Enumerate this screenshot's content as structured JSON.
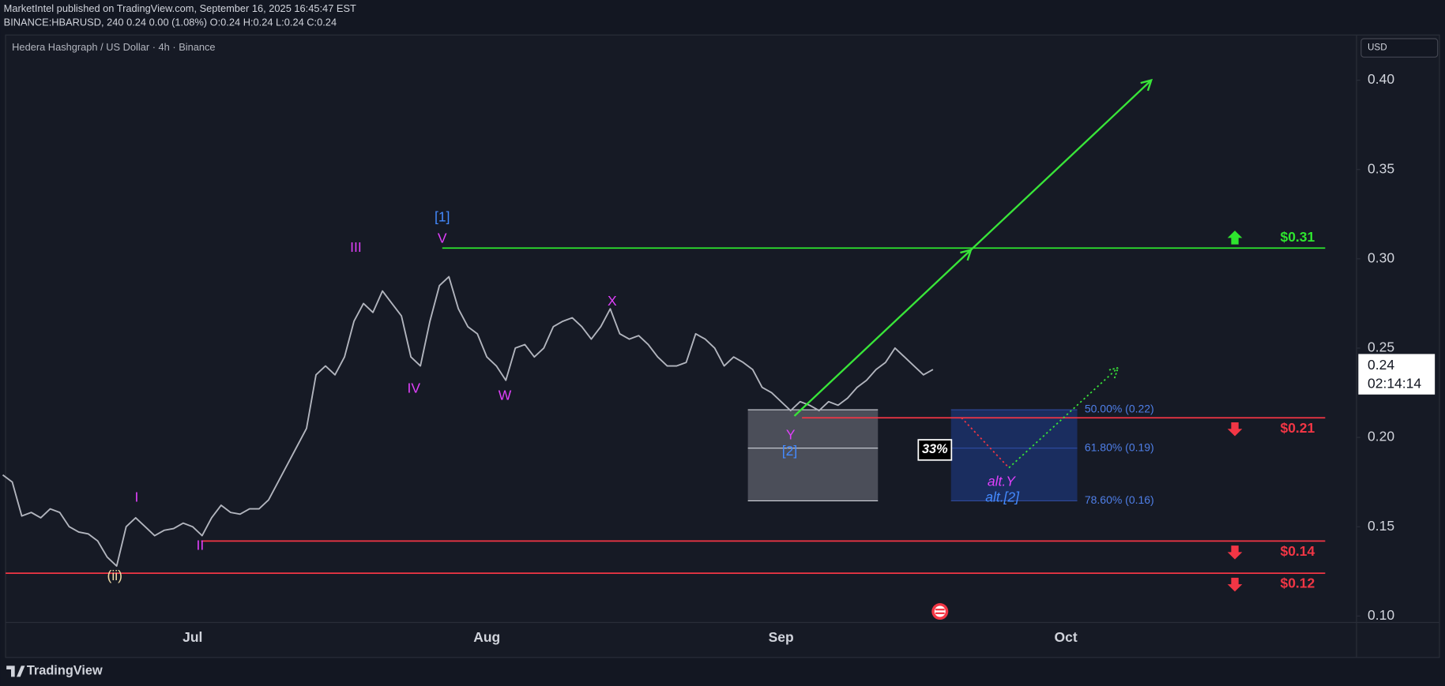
{
  "header": {
    "publisher": "MarketIntel published on TradingView.com, September 16, 2025 16:45:47 EST",
    "symbol_line": "BINANCE:HBARUSD, 240 0.24 0.00 (1.08%) O:0.24 H:0.24 L:0.24 C:0.24"
  },
  "footer": {
    "brand": "TradingView"
  },
  "chart_data": {
    "type": "line",
    "title": "Hedera Hashgraph / US Dollar · 4h · Binance",
    "currency": "USD",
    "color": "#b2b5be",
    "categories": [
      null,
      null,
      null,
      null,
      null,
      null,
      null,
      null,
      null,
      null,
      null,
      null,
      null,
      null,
      null,
      null,
      null,
      null,
      null,
      null,
      "Jul",
      null,
      null,
      null,
      null,
      null,
      null,
      null,
      null,
      null,
      null,
      null,
      null,
      null,
      null,
      null,
      null,
      null,
      null,
      null,
      null,
      null,
      null,
      null,
      null,
      null,
      null,
      null,
      null,
      null,
      null,
      "Aug",
      null,
      null,
      null,
      null,
      null,
      null,
      null,
      null,
      null,
      null,
      null,
      null,
      null,
      null,
      null,
      null,
      null,
      null,
      null,
      null,
      null,
      null,
      null,
      null,
      null,
      null,
      null,
      null,
      null,
      null,
      "Sep",
      null,
      null,
      null,
      null,
      null,
      null,
      null,
      null,
      null,
      null,
      null,
      null,
      null,
      null,
      null,
      null,
      null,
      null,
      null,
      null,
      null,
      null,
      null,
      null,
      null,
      null,
      null,
      null,
      null,
      "Oct",
      null,
      null,
      null,
      null,
      null,
      null,
      null,
      null,
      null,
      null,
      null,
      null,
      null,
      null,
      null,
      null,
      null,
      null,
      null,
      null,
      null,
      null,
      null,
      null,
      null,
      null,
      null,
      null,
      null,
      null
    ],
    "values": [
      0.179,
      0.175,
      0.156,
      0.158,
      0.155,
      0.16,
      0.158,
      0.15,
      0.147,
      0.146,
      0.142,
      0.133,
      0.128,
      0.15,
      0.155,
      0.15,
      0.145,
      0.148,
      0.149,
      0.152,
      0.15,
      0.145,
      0.155,
      0.162,
      0.158,
      0.157,
      0.16,
      0.16,
      0.165,
      0.175,
      0.185,
      0.195,
      0.205,
      0.235,
      0.24,
      0.235,
      0.245,
      0.265,
      0.275,
      0.27,
      0.282,
      0.275,
      0.268,
      0.245,
      0.24,
      0.265,
      0.285,
      0.29,
      0.272,
      0.262,
      0.258,
      0.245,
      0.24,
      0.232,
      0.25,
      0.252,
      0.245,
      0.25,
      0.262,
      0.265,
      0.267,
      0.262,
      0.255,
      0.262,
      0.272,
      0.258,
      0.255,
      0.257,
      0.252,
      0.245,
      0.24,
      0.24,
      0.242,
      0.258,
      0.255,
      0.25,
      0.24,
      0.245,
      0.242,
      0.238,
      0.228,
      0.225,
      0.22,
      0.215,
      0.22,
      0.218,
      0.215,
      0.22,
      0.218,
      0.222,
      0.228,
      0.232,
      0.238,
      0.242,
      0.25,
      0.245,
      0.24,
      0.235,
      0.238,
      null,
      null,
      null,
      null,
      null,
      null,
      null,
      null,
      null,
      null,
      null,
      null,
      null,
      null,
      null,
      null,
      null,
      null,
      null,
      null,
      null,
      null,
      null,
      null,
      null,
      null,
      null,
      null,
      null,
      null,
      null,
      null,
      null,
      null,
      null,
      null,
      null,
      null,
      null,
      null,
      null,
      null,
      null,
      null
    ],
    "ylim": [
      0.0964,
      0.4253
    ],
    "yticks": [
      {
        "value": 0.1,
        "label": "0.10"
      },
      0.15,
      {
        "value": 0.2,
        "label": "0.20"
      },
      0.25,
      {
        "value": 0.3,
        "label": "0.30"
      },
      0.35,
      {
        "value": 0.4,
        "label": "0.40"
      }
    ],
    "grid": false,
    "last_price": {
      "value": 0.24,
      "countdown": "02:14:14"
    },
    "levels": [
      {
        "value": 0.306,
        "label": "$0.31",
        "color": "#2ee52e",
        "direction": "up",
        "from": 46.3
      },
      {
        "value": 0.211,
        "label": "$0.21",
        "color": "#f23645",
        "direction": "down",
        "from": 84.2
      },
      {
        "value": 0.142,
        "label": "$0.14",
        "color": "#f23645",
        "direction": "down",
        "from": 20.9
      },
      {
        "value": 0.124,
        "label": "$0.12",
        "color": "#f23645",
        "direction": "down",
        "from": 0.3
      }
    ],
    "zones": [
      {
        "x": [
          78.5,
          92.2
        ],
        "y": [
          0.1645,
          0.2155
        ],
        "mid": 0.194,
        "color": "#5d606b"
      },
      {
        "x": [
          99.9,
          113.2
        ],
        "y": [
          0.1645,
          0.2155
        ],
        "color": "#1c3473"
      }
    ],
    "fib_levels": [
      {
        "value": 0.2155,
        "label": "50.00% (0.22)"
      },
      {
        "value": 0.194,
        "label": "61.80% (0.19)"
      },
      {
        "value": 0.1645,
        "label": "78.60% (0.16)"
      }
    ],
    "projections": [
      {
        "x": [
          83.4,
          102,
          121
        ],
        "y": [
          0.212,
          0.305,
          0.4
        ],
        "color": "#39e539",
        "dashed": false
      },
      {
        "x": [
          101,
          106
        ],
        "y": [
          0.211,
          0.183
        ],
        "color": "#f23645",
        "dashed": true
      },
      {
        "x": [
          106,
          117.5
        ],
        "y": [
          0.183,
          0.239
        ],
        "color": "#39e539",
        "dashed": true
      }
    ],
    "wave_labels": [
      {
        "text": "(ii)",
        "at": [
          11.8,
          0.122
        ],
        "color": "#f0dca6"
      },
      {
        "text": "I",
        "at": [
          14.1,
          0.166
        ],
        "color": "#e040fb"
      },
      {
        "text": "II",
        "at": [
          20.8,
          0.139
        ],
        "color": "#e040fb"
      },
      {
        "text": "III",
        "at": [
          37.2,
          0.306
        ],
        "color": "#e040fb"
      },
      {
        "text": "[1]",
        "at": [
          46.3,
          0.323
        ],
        "color": "#448aff"
      },
      {
        "text": "V",
        "at": [
          46.3,
          0.311
        ],
        "color": "#e040fb"
      },
      {
        "text": "IV",
        "at": [
          43.3,
          0.227
        ],
        "color": "#e040fb"
      },
      {
        "text": "W",
        "at": [
          52.9,
          0.223
        ],
        "color": "#e040fb"
      },
      {
        "text": "X",
        "at": [
          64.2,
          0.276
        ],
        "color": "#e040fb"
      },
      {
        "text": "Y",
        "at": [
          83,
          0.201
        ],
        "color": "#e040fb"
      },
      {
        "text": "[2]",
        "at": [
          82.9,
          0.192
        ],
        "color": "#448aff"
      },
      {
        "text": "alt.Y",
        "at": [
          105.2,
          0.175
        ],
        "color": "#e040fb",
        "italic": true
      },
      {
        "text": "alt.[2]",
        "at": [
          105.3,
          0.166
        ],
        "color": "#448aff",
        "italic": true
      }
    ],
    "probability": {
      "text": "33%",
      "at": [
        98.2,
        0.193
      ]
    }
  }
}
